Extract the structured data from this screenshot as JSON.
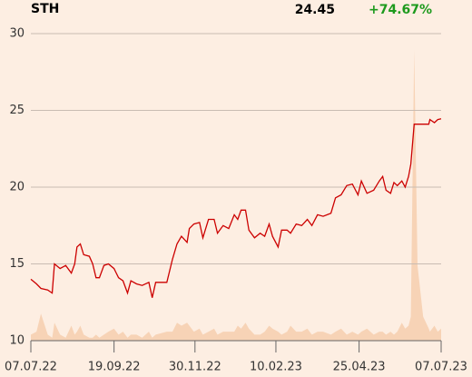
{
  "chart_data": {
    "type": "line",
    "title": "STH",
    "last_price": 24.45,
    "change": {
      "value": 74.67,
      "label": "+74.67%"
    },
    "change_color": "#1d9a1d",
    "x": [
      "2022-07-07",
      "2022-07-12",
      "2022-07-16",
      "2022-07-22",
      "2022-07-26",
      "2022-07-28",
      "2022-08-02",
      "2022-08-07",
      "2022-08-12",
      "2022-08-15",
      "2022-08-17",
      "2022-08-20",
      "2022-08-23",
      "2022-08-28",
      "2022-08-31",
      "2022-09-03",
      "2022-09-06",
      "2022-09-10",
      "2022-09-14",
      "2022-09-19",
      "2022-09-23",
      "2022-09-27",
      "2022-10-01",
      "2022-10-04",
      "2022-10-09",
      "2022-10-14",
      "2022-10-20",
      "2022-10-23",
      "2022-10-26",
      "2022-11-05",
      "2022-11-10",
      "2022-11-14",
      "2022-11-18",
      "2022-11-23",
      "2022-11-25",
      "2022-11-29",
      "2022-12-04",
      "2022-12-07",
      "2022-12-12",
      "2022-12-17",
      "2022-12-20",
      "2022-12-25",
      "2022-12-30",
      "2023-01-04",
      "2023-01-07",
      "2023-01-10",
      "2023-01-14",
      "2023-01-17",
      "2023-01-22",
      "2023-01-27",
      "2023-01-31",
      "2023-02-04",
      "2023-02-07",
      "2023-02-12",
      "2023-02-15",
      "2023-02-20",
      "2023-02-23",
      "2023-02-28",
      "2023-03-05",
      "2023-03-10",
      "2023-03-14",
      "2023-03-19",
      "2023-03-24",
      "2023-03-31",
      "2023-04-04",
      "2023-04-09",
      "2023-04-14",
      "2023-04-19",
      "2023-04-24",
      "2023-04-27",
      "2023-05-02",
      "2023-05-08",
      "2023-05-13",
      "2023-05-16",
      "2023-05-19",
      "2023-05-23",
      "2023-05-26",
      "2023-05-29",
      "2023-06-02",
      "2023-06-05",
      "2023-06-08",
      "2023-06-10",
      "2023-06-13",
      "2023-06-16",
      "2023-06-21",
      "2023-06-26",
      "2023-06-27",
      "2023-07-01",
      "2023-07-04",
      "2023-07-07"
    ],
    "series": [
      {
        "color": "#cc0000",
        "values": [
          14.0,
          13.7,
          13.4,
          13.3,
          13.1,
          15.0,
          14.7,
          14.9,
          14.4,
          15.0,
          16.1,
          16.3,
          15.6,
          15.5,
          15.0,
          14.1,
          14.1,
          14.9,
          15.0,
          14.7,
          14.1,
          13.9,
          13.1,
          13.9,
          13.7,
          13.6,
          13.8,
          12.8,
          13.8,
          13.8,
          15.3,
          16.3,
          16.8,
          16.4,
          17.3,
          17.6,
          17.7,
          16.7,
          17.9,
          17.9,
          17.0,
          17.5,
          17.3,
          18.2,
          17.9,
          18.5,
          18.5,
          17.2,
          16.7,
          17.0,
          16.8,
          17.6,
          16.8,
          16.1,
          17.2,
          17.2,
          17.0,
          17.6,
          17.5,
          17.9,
          17.5,
          18.2,
          18.1,
          18.3,
          19.3,
          19.5,
          20.1,
          20.2,
          19.5,
          20.4,
          19.6,
          19.8,
          20.4,
          20.7,
          19.8,
          19.6,
          20.3,
          20.1,
          20.4,
          20.0,
          20.7,
          21.5,
          24.1,
          24.1,
          24.1,
          24.1,
          24.4,
          24.2,
          24.4,
          24.45
        ]
      },
      {
        "color": "#f7d3b6",
        "axis": "y2",
        "values": [
          2,
          3,
          9,
          2,
          1,
          6,
          2,
          1,
          5,
          2,
          3,
          5,
          2,
          1,
          1,
          2,
          1,
          2,
          3,
          4,
          2,
          3,
          1,
          2,
          2,
          1,
          3,
          1,
          2,
          3,
          3,
          6,
          5,
          6,
          5,
          3,
          4,
          2,
          3,
          4,
          2,
          3,
          3,
          3,
          5,
          4,
          6,
          4,
          2,
          2,
          3,
          5,
          4,
          3,
          2,
          3,
          5,
          3,
          3,
          4,
          2,
          3,
          3,
          2,
          3,
          4,
          2,
          3,
          2,
          3,
          4,
          2,
          3,
          3,
          2,
          3,
          2,
          3,
          6,
          4,
          5,
          8,
          97,
          25,
          8,
          4,
          3,
          5,
          3,
          4
        ]
      }
    ],
    "xlim": [
      "2022-07-07",
      "2023-07-07"
    ],
    "xticks": [
      {
        "value": "2022-07-07",
        "label": "07.07.22"
      },
      {
        "value": "2022-09-19",
        "label": "19.09.22"
      },
      {
        "value": "2022-11-30",
        "label": "30.11.22"
      },
      {
        "value": "2023-02-10",
        "label": "10.02.23"
      },
      {
        "value": "2023-04-25",
        "label": "25.04.23"
      },
      {
        "value": "2023-07-07",
        "label": "07.07.23"
      }
    ],
    "ylim": [
      10,
      30
    ],
    "yticks": [
      10,
      15,
      20,
      25,
      30
    ],
    "y2lim": [
      0,
      100
    ],
    "grid": true
  }
}
